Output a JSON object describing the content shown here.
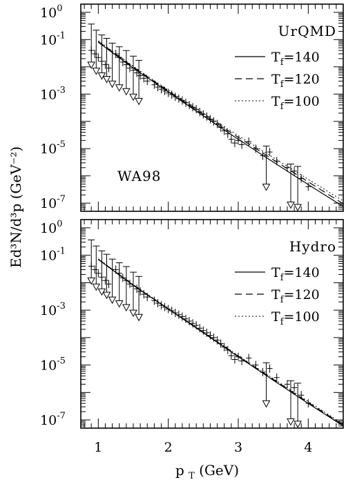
{
  "chart_data": [
    {
      "type": "scatter",
      "panel": "top",
      "model_label": "UrQMD",
      "experiment_label": "WA98",
      "xlim": [
        0.75,
        4.5
      ],
      "ylim_log10": [
        -7.3,
        0.3
      ],
      "log_y": true,
      "y_tick_labels": [
        "10^0",
        "10^-1",
        "10^-3",
        "10^-5",
        "10^-7"
      ],
      "legend_position": "top-right",
      "series": [
        {
          "name": "T_f=140",
          "style": "solid",
          "x": [
            1.0,
            1.5,
            2.0,
            2.5,
            3.0,
            3.5,
            4.0,
            4.5
          ],
          "y": [
            0.08,
            0.009,
            0.0012,
            0.00016,
            2.2e-05,
            3.2e-06,
            4.8e-07,
            7.5e-08
          ]
        },
        {
          "name": "T_f=120",
          "style": "dashed",
          "x": [
            1.0,
            1.5,
            2.0,
            2.5,
            3.0,
            3.5,
            4.0,
            4.5
          ],
          "y": [
            0.085,
            0.0098,
            0.0013,
            0.00018,
            2.6e-05,
            3.9e-06,
            6e-07,
            9.5e-08
          ]
        },
        {
          "name": "T_f=100",
          "style": "dotted",
          "x": [
            1.0,
            1.5,
            2.0,
            2.5,
            3.0,
            3.5,
            4.0,
            4.5
          ],
          "y": [
            0.09,
            0.0105,
            0.0014,
            0.0002,
            3e-05,
            4.7e-06,
            7.5e-07,
            1.2e-07
          ]
        }
      ],
      "data_points": [
        {
          "x": 0.9,
          "y": 0.04
        },
        {
          "x": 0.95,
          "y": 0.03
        },
        {
          "x": 1.0,
          "y": 0.022
        },
        {
          "x": 1.05,
          "y": 0.016
        },
        {
          "x": 1.1,
          "y": 0.012
        },
        {
          "x": 1.15,
          "y": 0.009
        },
        {
          "x": 1.25,
          "y": 0.03
        },
        {
          "x": 1.3,
          "y": 0.022
        },
        {
          "x": 1.35,
          "y": 0.015
        },
        {
          "x": 1.4,
          "y": 0.012
        },
        {
          "x": 1.45,
          "y": 0.009
        },
        {
          "x": 1.5,
          "y": 0.0075
        },
        {
          "x": 1.55,
          "y": 0.006
        },
        {
          "x": 1.6,
          "y": 0.0048
        },
        {
          "x": 1.65,
          "y": 0.0038
        },
        {
          "x": 1.7,
          "y": 0.003
        },
        {
          "x": 1.8,
          "y": 0.0022
        },
        {
          "x": 1.85,
          "y": 0.0018
        },
        {
          "x": 1.9,
          "y": 0.0015
        },
        {
          "x": 1.95,
          "y": 0.0013
        },
        {
          "x": 2.0,
          "y": 0.0011
        },
        {
          "x": 2.05,
          "y": 0.00095
        },
        {
          "x": 2.1,
          "y": 0.0008
        },
        {
          "x": 2.15,
          "y": 0.00068
        },
        {
          "x": 2.2,
          "y": 0.00058
        },
        {
          "x": 2.25,
          "y": 0.00048
        },
        {
          "x": 2.3,
          "y": 0.0004
        },
        {
          "x": 2.35,
          "y": 0.00033
        },
        {
          "x": 2.4,
          "y": 0.00028
        },
        {
          "x": 2.45,
          "y": 0.00022
        },
        {
          "x": 2.5,
          "y": 0.00018
        },
        {
          "x": 2.55,
          "y": 0.00015
        },
        {
          "x": 2.6,
          "y": 0.00012
        },
        {
          "x": 2.65,
          "y": 0.0001
        },
        {
          "x": 2.7,
          "y": 8e-05
        },
        {
          "x": 2.75,
          "y": 6e-05
        },
        {
          "x": 2.8,
          "y": 4.5e-05
        },
        {
          "x": 2.85,
          "y": 3.5e-05
        },
        {
          "x": 2.9,
          "y": 2.2e-05
        },
        {
          "x": 2.95,
          "y": 1.6e-05
        },
        {
          "x": 3.0,
          "y": 2e-05
        },
        {
          "x": 3.05,
          "y": 1.4e-05
        },
        {
          "x": 3.15,
          "y": 1.8e-05
        },
        {
          "x": 3.25,
          "y": 1e-05
        },
        {
          "x": 3.35,
          "y": 5.5e-06
        },
        {
          "x": 3.45,
          "y": 7.5e-06
        },
        {
          "x": 3.55,
          "y": 3.5e-06
        },
        {
          "x": 3.7,
          "y": 2e-06
        },
        {
          "x": 3.8,
          "y": 1.5e-06
        },
        {
          "x": 3.9,
          "y": 8e-07
        },
        {
          "x": 4.0,
          "y": 4e-07
        }
      ],
      "upper_limits": [
        {
          "x": 0.9,
          "y": 0.015
        },
        {
          "x": 0.97,
          "y": 0.009
        },
        {
          "x": 1.05,
          "y": 0.006
        },
        {
          "x": 1.12,
          "y": 0.0045
        },
        {
          "x": 1.2,
          "y": 0.003
        },
        {
          "x": 1.3,
          "y": 0.0022
        },
        {
          "x": 1.4,
          "y": 0.0016
        },
        {
          "x": 1.5,
          "y": 0.001
        },
        {
          "x": 1.58,
          "y": 0.0007
        },
        {
          "x": 3.4,
          "y": 5e-07
        },
        {
          "x": 3.75,
          "y": 1.1e-07
        },
        {
          "x": 3.85,
          "y": 9e-08
        }
      ]
    },
    {
      "type": "scatter",
      "panel": "bottom",
      "model_label": "Hydro",
      "xlim": [
        0.75,
        4.5
      ],
      "ylim_log10": [
        -7.3,
        0.3
      ],
      "log_y": true,
      "y_tick_labels": [
        "10^0",
        "10^-1",
        "10^-3",
        "10^-5",
        "10^-7"
      ],
      "x_tick_labels": [
        "1",
        "2",
        "3",
        "4"
      ],
      "xlabel": "p_T (GeV)",
      "legend_position": "top-right",
      "series": [
        {
          "name": "T_f=140",
          "style": "solid",
          "x": [
            1.0,
            1.5,
            2.0,
            2.5,
            3.0,
            3.5,
            4.0,
            4.5
          ],
          "y": [
            0.07,
            0.008,
            0.0011,
            0.00015,
            2e-05,
            2.8e-06,
            4e-07,
            6e-08
          ]
        },
        {
          "name": "T_f=120",
          "style": "dashed",
          "x": [
            1.0,
            1.5,
            2.0,
            2.5,
            3.0,
            3.5,
            4.0,
            4.5
          ],
          "y": [
            0.072,
            0.0082,
            0.00112,
            0.000155,
            2.1e-05,
            3e-06,
            4.3e-07,
            6.5e-08
          ]
        },
        {
          "name": "T_f=100",
          "style": "dotted",
          "x": [
            1.0,
            1.5,
            2.0,
            2.5,
            3.0,
            3.5,
            4.0,
            4.5
          ],
          "y": [
            0.074,
            0.0085,
            0.00115,
            0.00016,
            2.2e-05,
            3.2e-06,
            4.7e-07,
            7e-08
          ]
        }
      ],
      "data_points": [
        {
          "x": 0.9,
          "y": 0.04
        },
        {
          "x": 0.95,
          "y": 0.03
        },
        {
          "x": 1.0,
          "y": 0.022
        },
        {
          "x": 1.05,
          "y": 0.016
        },
        {
          "x": 1.1,
          "y": 0.012
        },
        {
          "x": 1.15,
          "y": 0.009
        },
        {
          "x": 1.25,
          "y": 0.03
        },
        {
          "x": 1.3,
          "y": 0.022
        },
        {
          "x": 1.35,
          "y": 0.015
        },
        {
          "x": 1.4,
          "y": 0.012
        },
        {
          "x": 1.45,
          "y": 0.009
        },
        {
          "x": 1.5,
          "y": 0.0075
        },
        {
          "x": 1.55,
          "y": 0.006
        },
        {
          "x": 1.6,
          "y": 0.0048
        },
        {
          "x": 1.65,
          "y": 0.0038
        },
        {
          "x": 1.7,
          "y": 0.003
        },
        {
          "x": 1.8,
          "y": 0.0022
        },
        {
          "x": 1.85,
          "y": 0.0018
        },
        {
          "x": 1.9,
          "y": 0.0015
        },
        {
          "x": 1.95,
          "y": 0.0013
        },
        {
          "x": 2.0,
          "y": 0.0011
        },
        {
          "x": 2.05,
          "y": 0.00095
        },
        {
          "x": 2.1,
          "y": 0.0008
        },
        {
          "x": 2.15,
          "y": 0.00068
        },
        {
          "x": 2.2,
          "y": 0.00058
        },
        {
          "x": 2.25,
          "y": 0.00048
        },
        {
          "x": 2.3,
          "y": 0.0004
        },
        {
          "x": 2.35,
          "y": 0.00033
        },
        {
          "x": 2.4,
          "y": 0.00028
        },
        {
          "x": 2.45,
          "y": 0.00022
        },
        {
          "x": 2.5,
          "y": 0.00018
        },
        {
          "x": 2.55,
          "y": 0.00015
        },
        {
          "x": 2.6,
          "y": 0.00012
        },
        {
          "x": 2.65,
          "y": 0.0001
        },
        {
          "x": 2.7,
          "y": 8e-05
        },
        {
          "x": 2.75,
          "y": 6e-05
        },
        {
          "x": 2.8,
          "y": 4.5e-05
        },
        {
          "x": 2.85,
          "y": 3.5e-05
        },
        {
          "x": 2.9,
          "y": 2.2e-05
        },
        {
          "x": 2.95,
          "y": 1.6e-05
        },
        {
          "x": 3.0,
          "y": 2e-05
        },
        {
          "x": 3.05,
          "y": 1.4e-05
        },
        {
          "x": 3.15,
          "y": 1.8e-05
        },
        {
          "x": 3.25,
          "y": 1e-05
        },
        {
          "x": 3.35,
          "y": 5.5e-06
        },
        {
          "x": 3.45,
          "y": 7.5e-06
        },
        {
          "x": 3.55,
          "y": 3.5e-06
        },
        {
          "x": 3.7,
          "y": 2e-06
        },
        {
          "x": 3.8,
          "y": 1.5e-06
        },
        {
          "x": 3.9,
          "y": 8e-07
        },
        {
          "x": 4.0,
          "y": 4e-07
        }
      ],
      "upper_limits": [
        {
          "x": 0.9,
          "y": 0.015
        },
        {
          "x": 0.97,
          "y": 0.009
        },
        {
          "x": 1.05,
          "y": 0.006
        },
        {
          "x": 1.12,
          "y": 0.0045
        },
        {
          "x": 1.2,
          "y": 0.003
        },
        {
          "x": 1.3,
          "y": 0.0022
        },
        {
          "x": 1.4,
          "y": 0.0016
        },
        {
          "x": 1.5,
          "y": 0.001
        },
        {
          "x": 1.58,
          "y": 0.0007
        },
        {
          "x": 3.4,
          "y": 5e-07
        },
        {
          "x": 3.75,
          "y": 1.1e-07
        },
        {
          "x": 3.85,
          "y": 9e-08
        }
      ]
    }
  ],
  "shared": {
    "ylabel": "Ed³N/d³p  (GeV⁻²)"
  }
}
